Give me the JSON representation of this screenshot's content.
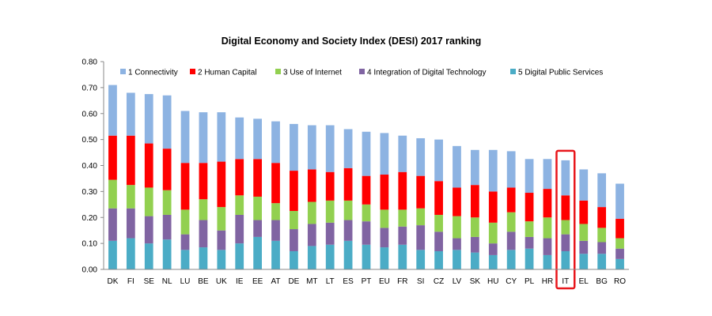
{
  "chart_data": {
    "type": "bar",
    "stacked": true,
    "title": "Digital Economy and Society Index (DESI) 2017 ranking",
    "xlabel": "",
    "ylabel": "",
    "ylim": [
      0,
      0.8
    ],
    "yticks": [
      "0.00",
      "0.10",
      "0.20",
      "0.30",
      "0.40",
      "0.50",
      "0.60",
      "0.70",
      "0.80"
    ],
    "grid": false,
    "legend_position": "top",
    "highlight_category": "IT",
    "highlight_color": "#e8161b",
    "categories": [
      "DK",
      "FI",
      "SE",
      "NL",
      "LU",
      "BE",
      "UK",
      "IE",
      "EE",
      "AT",
      "DE",
      "MT",
      "LT",
      "ES",
      "PT",
      "EU",
      "FR",
      "SI",
      "CZ",
      "LV",
      "SK",
      "HU",
      "CY",
      "PL",
      "HR",
      "IT",
      "EL",
      "BG",
      "RO"
    ],
    "series": [
      {
        "name": "5 Digital Public Services",
        "color": "#4bacc6",
        "values": [
          0.11,
          0.12,
          0.1,
          0.115,
          0.075,
          0.085,
          0.075,
          0.1,
          0.125,
          0.11,
          0.07,
          0.09,
          0.095,
          0.11,
          0.095,
          0.085,
          0.095,
          0.075,
          0.07,
          0.075,
          0.065,
          0.055,
          0.075,
          0.08,
          0.055,
          0.07,
          0.06,
          0.06,
          0.04
        ]
      },
      {
        "name": "4 Integration of Digital Technology",
        "color": "#8064a2",
        "values": [
          0.125,
          0.115,
          0.105,
          0.095,
          0.06,
          0.105,
          0.075,
          0.11,
          0.065,
          0.08,
          0.085,
          0.085,
          0.085,
          0.08,
          0.09,
          0.075,
          0.07,
          0.095,
          0.075,
          0.045,
          0.06,
          0.045,
          0.07,
          0.045,
          0.065,
          0.065,
          0.05,
          0.045,
          0.04
        ]
      },
      {
        "name": "3 Use of Internet",
        "color": "#92d050",
        "values": [
          0.11,
          0.09,
          0.11,
          0.095,
          0.095,
          0.08,
          0.09,
          0.075,
          0.09,
          0.065,
          0.07,
          0.085,
          0.085,
          0.075,
          0.065,
          0.07,
          0.065,
          0.065,
          0.065,
          0.085,
          0.075,
          0.08,
          0.075,
          0.06,
          0.08,
          0.055,
          0.065,
          0.055,
          0.04
        ]
      },
      {
        "name": "2 Human Capital",
        "color": "#ff0000",
        "values": [
          0.17,
          0.19,
          0.17,
          0.16,
          0.18,
          0.14,
          0.175,
          0.14,
          0.145,
          0.155,
          0.155,
          0.125,
          0.11,
          0.125,
          0.11,
          0.135,
          0.145,
          0.125,
          0.13,
          0.11,
          0.125,
          0.12,
          0.095,
          0.11,
          0.11,
          0.095,
          0.09,
          0.08,
          0.075
        ]
      },
      {
        "name": "1 Connectivity",
        "color": "#8db3e2",
        "values": [
          0.195,
          0.165,
          0.19,
          0.205,
          0.2,
          0.195,
          0.19,
          0.16,
          0.155,
          0.16,
          0.18,
          0.17,
          0.18,
          0.15,
          0.17,
          0.16,
          0.14,
          0.145,
          0.16,
          0.16,
          0.135,
          0.16,
          0.14,
          0.13,
          0.115,
          0.135,
          0.12,
          0.13,
          0.135
        ]
      }
    ]
  }
}
